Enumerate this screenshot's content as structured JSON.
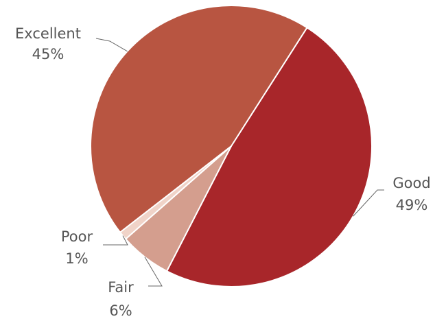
{
  "chart_data": {
    "type": "pie",
    "title": "",
    "start_angle_deg": 32.6,
    "direction": "clockwise",
    "slices": [
      {
        "label": "Good",
        "value": 49,
        "value_label": "49%",
        "color": "#a8262a"
      },
      {
        "label": "Fair",
        "value": 6,
        "value_label": "6%",
        "color": "#d49e8e"
      },
      {
        "label": "Poor",
        "value": 1,
        "value_label": "1%",
        "color": "#f0d3c8"
      },
      {
        "label": "Excellent",
        "value": 45,
        "value_label": "45%",
        "color": "#b85541"
      }
    ]
  }
}
